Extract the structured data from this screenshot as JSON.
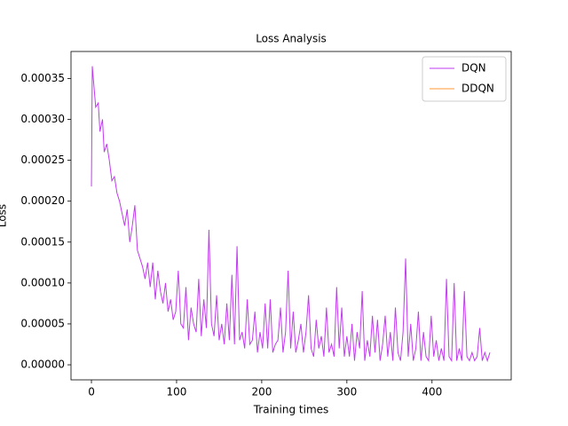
{
  "chart_data": {
    "type": "line",
    "title": "Loss Analysis",
    "x_label": "Training times",
    "y_label": "Loss",
    "xlim": [
      -24,
      493
    ],
    "ylim": [
      -1.84e-05,
      0.000383
    ],
    "xticks": [
      0,
      100,
      200,
      300,
      400
    ],
    "yticks": [
      {
        "value": 0,
        "label": "0.00000"
      },
      {
        "value": 5e-05,
        "label": "0.00005"
      },
      {
        "value": 0.0001,
        "label": "0.00010"
      },
      {
        "value": 0.00015,
        "label": "0.00015"
      },
      {
        "value": 0.0002,
        "label": "0.00020"
      },
      {
        "value": 0.00025,
        "label": "0.00025"
      },
      {
        "value": 0.0003,
        "label": "0.00030"
      },
      {
        "value": 0.00035,
        "label": "0.00035"
      }
    ],
    "grid": false,
    "legend": "upper right",
    "series": [
      {
        "name": "DQN",
        "color": "#c23bf0",
        "x": [
          0,
          1,
          3,
          5,
          8,
          10,
          13,
          15,
          18,
          21,
          24,
          27,
          30,
          33,
          36,
          39,
          42,
          45,
          48,
          51,
          54,
          57,
          60,
          63,
          66,
          69,
          72,
          75,
          78,
          81,
          84,
          87,
          90,
          93,
          96,
          99,
          102,
          105,
          108,
          111,
          114,
          117,
          120,
          123,
          126,
          129,
          132,
          135,
          138,
          141,
          144,
          147,
          150,
          153,
          156,
          159,
          162,
          165,
          168,
          171,
          174,
          177,
          180,
          183,
          186,
          189,
          192,
          195,
          198,
          201,
          204,
          207,
          210,
          213,
          216,
          219,
          222,
          225,
          228,
          231,
          234,
          237,
          240,
          243,
          246,
          249,
          252,
          255,
          258,
          261,
          264,
          267,
          270,
          273,
          276,
          279,
          282,
          285,
          288,
          291,
          294,
          297,
          300,
          303,
          306,
          309,
          312,
          315,
          318,
          321,
          324,
          327,
          330,
          333,
          336,
          339,
          342,
          345,
          348,
          351,
          354,
          357,
          360,
          363,
          366,
          369,
          372,
          375,
          378,
          381,
          384,
          387,
          390,
          393,
          396,
          399,
          402,
          405,
          408,
          411,
          414,
          417,
          420,
          423,
          426,
          429,
          432,
          435,
          438,
          441,
          444,
          447,
          450,
          453,
          456,
          459,
          462,
          465,
          468
        ],
        "values": [
          0.000218,
          0.000365,
          0.00034,
          0.000315,
          0.00032,
          0.000285,
          0.0003,
          0.00026,
          0.00027,
          0.00025,
          0.000225,
          0.00023,
          0.00021,
          0.0002,
          0.000185,
          0.00017,
          0.00019,
          0.00015,
          0.00017,
          0.000195,
          0.00014,
          0.00013,
          0.00012,
          0.000105,
          0.000125,
          9.5e-05,
          0.000125,
          8e-05,
          0.000115,
          9e-05,
          7.5e-05,
          0.0001,
          6.5e-05,
          8e-05,
          5.5e-05,
          6.5e-05,
          0.000115,
          5e-05,
          4.5e-05,
          9.5e-05,
          3e-05,
          7e-05,
          5e-05,
          4e-05,
          0.000105,
          3.5e-05,
          8e-05,
          4.5e-05,
          0.000165,
          5e-05,
          3.5e-05,
          8.5e-05,
          3e-05,
          5e-05,
          2.5e-05,
          7.5e-05,
          3e-05,
          0.00011,
          2.5e-05,
          0.000145,
          3e-05,
          4e-05,
          2e-05,
          8e-05,
          2.5e-05,
          3e-05,
          6.5e-05,
          1.5e-05,
          4e-05,
          2e-05,
          7.5e-05,
          2e-05,
          8e-05,
          1.5e-05,
          2.5e-05,
          3e-05,
          7e-05,
          1.5e-05,
          4e-05,
          0.000115,
          2e-05,
          6.5e-05,
          1.5e-05,
          3e-05,
          5e-05,
          1.5e-05,
          4e-05,
          8.5e-05,
          2e-05,
          1e-05,
          5.5e-05,
          2e-05,
          3.5e-05,
          1e-05,
          7e-05,
          1.5e-05,
          2.5e-05,
          1e-05,
          9.5e-05,
          2e-05,
          7e-05,
          1e-05,
          3.5e-05,
          1e-05,
          5e-05,
          5e-06,
          4e-05,
          2e-05,
          9e-05,
          5e-06,
          3e-05,
          1e-05,
          6e-05,
          1.5e-05,
          5.5e-05,
          5e-06,
          2.5e-05,
          6e-05,
          1e-05,
          4e-05,
          5e-06,
          7e-05,
          1.5e-05,
          5e-06,
          4e-05,
          0.00013,
          1e-05,
          5e-05,
          5e-06,
          2e-05,
          6.5e-05,
          5e-06,
          4e-05,
          1e-05,
          5e-06,
          6e-05,
          1e-05,
          3e-05,
          5e-06,
          2e-05,
          5e-06,
          0.000105,
          1e-05,
          5e-06,
          0.0001,
          5e-06,
          2e-05,
          5e-06,
          9e-05,
          1e-05,
          5e-06,
          1.5e-05,
          5e-06,
          1e-05,
          4.5e-05,
          5e-06,
          1.5e-05,
          5e-06,
          1.5e-05
        ]
      },
      {
        "name": "DDQN",
        "color": "#ff9933",
        "x": [],
        "values": []
      }
    ]
  }
}
